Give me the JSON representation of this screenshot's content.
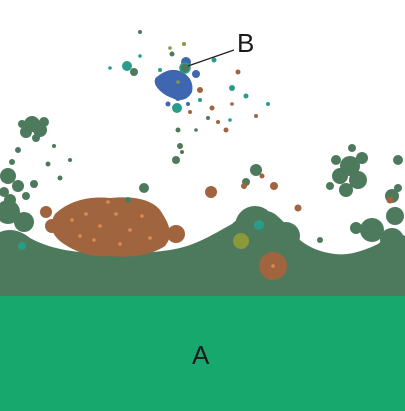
{
  "labels": {
    "region_a": "A",
    "marker_b": "B"
  },
  "colors": {
    "background": "#ffffff",
    "bright_green": "#17a86e",
    "dark_green": "#4d7a5c",
    "brown": "#a0643f",
    "blue": "#3f66b0",
    "teal": "#2a9d8a",
    "olive": "#8a9a3a",
    "leader_line": "#222222"
  }
}
